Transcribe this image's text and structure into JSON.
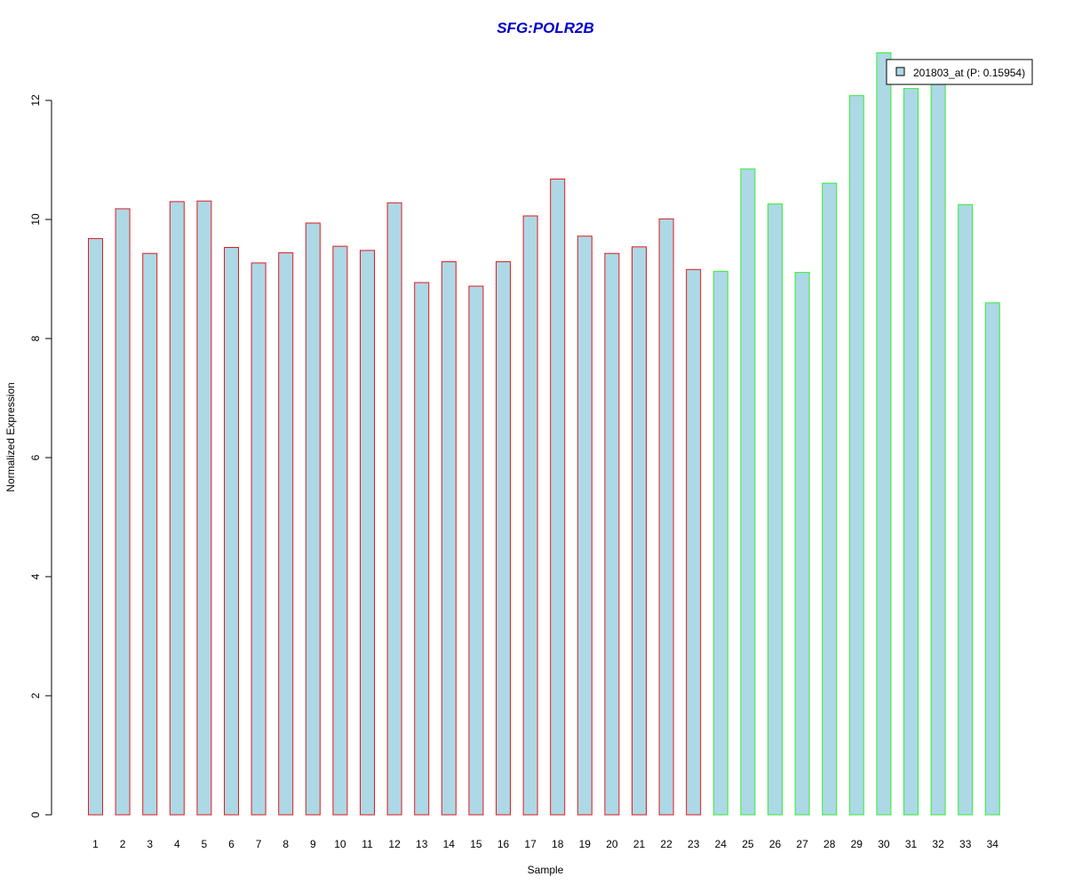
{
  "chart_data": {
    "type": "bar",
    "title": "SFG:POLR2B",
    "xlabel": "Sample",
    "ylabel": "Normalized Expression",
    "ylim": [
      0,
      12.8
    ],
    "yticks": [
      0,
      2,
      4,
      6,
      8,
      10,
      12
    ],
    "grid": false,
    "legend_position": "top-right",
    "categories": [
      "1",
      "2",
      "3",
      "4",
      "5",
      "6",
      "7",
      "8",
      "9",
      "10",
      "11",
      "12",
      "13",
      "14",
      "15",
      "16",
      "17",
      "18",
      "19",
      "20",
      "21",
      "22",
      "23",
      "24",
      "25",
      "26",
      "27",
      "28",
      "29",
      "30",
      "31",
      "32",
      "33",
      "34"
    ],
    "series": [
      {
        "name": "201803_at (P: 0.15954)",
        "values": [
          9.68,
          10.18,
          9.43,
          10.3,
          10.31,
          9.53,
          9.27,
          9.44,
          9.94,
          9.55,
          9.48,
          10.28,
          8.94,
          9.29,
          8.88,
          9.29,
          10.06,
          10.68,
          9.72,
          9.43,
          9.54,
          10.01,
          9.16,
          9.13,
          10.85,
          10.26,
          9.11,
          10.61,
          12.08,
          12.8,
          12.2,
          12.27,
          10.25,
          8.6
        ]
      }
    ],
    "group_border_colors": [
      "#e31a1c",
      "#e31a1c",
      "#e31a1c",
      "#e31a1c",
      "#e31a1c",
      "#e31a1c",
      "#e31a1c",
      "#e31a1c",
      "#e31a1c",
      "#e31a1c",
      "#e31a1c",
      "#e31a1c",
      "#e31a1c",
      "#e31a1c",
      "#e31a1c",
      "#e31a1c",
      "#e31a1c",
      "#e31a1c",
      "#e31a1c",
      "#e31a1c",
      "#e31a1c",
      "#e31a1c",
      "#e31a1c",
      "#33ee33",
      "#33ee33",
      "#33ee33",
      "#33ee33",
      "#33ee33",
      "#33ee33",
      "#33ee33",
      "#33ee33",
      "#33ee33",
      "#33ee33",
      "#33ee33"
    ],
    "bar_fill_color": "#add8e6",
    "title_color": "#0000cc"
  }
}
